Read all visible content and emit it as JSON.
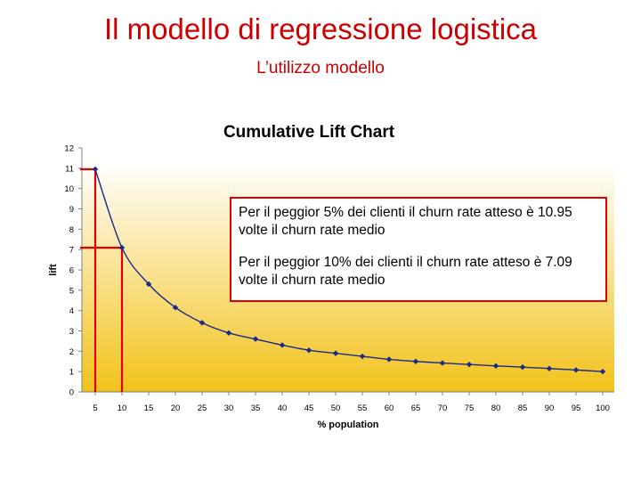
{
  "slide": {
    "title": "Il modello di regressione logistica",
    "subtitle": "L’utilizzo modello"
  },
  "callout": {
    "line1": "Per il peggior 5% dei clienti il churn rate atteso è 10.95 volte il churn rate medio",
    "line2": "Per il peggior 10% dei clienti il churn rate atteso è 7.09 volte il churn rate medio"
  },
  "colors": {
    "title": "#cc0000",
    "series": "#1a2a8a",
    "highlight": "#e00000",
    "plot_gradient_top": "#ffffff",
    "plot_gradient_bottom": "#f2c21a"
  },
  "chart_data": {
    "type": "line",
    "title": "Cumulative Lift Chart",
    "xlabel": "% population",
    "ylabel": "lift",
    "x": [
      5,
      10,
      15,
      20,
      25,
      30,
      35,
      40,
      45,
      50,
      55,
      60,
      65,
      70,
      75,
      80,
      85,
      90,
      95,
      100
    ],
    "y": [
      10.95,
      7.09,
      5.3,
      4.15,
      3.4,
      2.9,
      2.6,
      2.3,
      2.05,
      1.9,
      1.75,
      1.6,
      1.5,
      1.42,
      1.35,
      1.28,
      1.22,
      1.15,
      1.08,
      1.0
    ],
    "yticks": [
      0,
      1,
      2,
      3,
      4,
      5,
      6,
      7,
      8,
      9,
      10,
      11,
      12
    ],
    "ylim": [
      0,
      12
    ],
    "grid": false,
    "highlight_points": [
      5,
      10
    ]
  }
}
